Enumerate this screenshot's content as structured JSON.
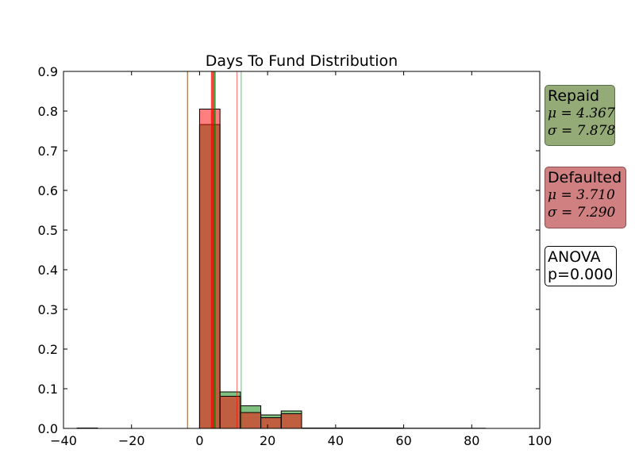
{
  "chart_data": {
    "type": "bar",
    "title": "Days To Fund Distribution",
    "xlabel": "",
    "ylabel": "",
    "xlim": [
      -40,
      100
    ],
    "ylim": [
      0,
      0.9
    ],
    "x_ticks": [
      "−40",
      "−20",
      "0",
      "20",
      "40",
      "60",
      "80",
      "100"
    ],
    "x_tick_values": [
      -40,
      -20,
      0,
      20,
      40,
      60,
      80,
      100
    ],
    "y_ticks": [
      "0.0",
      "0.1",
      "0.2",
      "0.3",
      "0.4",
      "0.5",
      "0.6",
      "0.7",
      "0.8",
      "0.9"
    ],
    "y_tick_values": [
      0,
      0.1,
      0.2,
      0.3,
      0.4,
      0.5,
      0.6,
      0.7,
      0.8,
      0.9
    ],
    "grid": false,
    "series": [
      {
        "name": "Repaid",
        "color": "#008000",
        "fill": "rgba(0,128,0,0.5)",
        "bins": [
          {
            "x0": -36,
            "x1": -30,
            "y": 0.001
          },
          {
            "x0": 0,
            "x1": 6,
            "y": 0.766
          },
          {
            "x0": 6,
            "x1": 12,
            "y": 0.092
          },
          {
            "x0": 12,
            "x1": 18,
            "y": 0.057
          },
          {
            "x0": 18,
            "x1": 24,
            "y": 0.034
          },
          {
            "x0": 24,
            "x1": 30,
            "y": 0.044
          },
          {
            "x0": 30,
            "x1": 60,
            "y": 0.001
          },
          {
            "x0": 60,
            "x1": 84,
            "y": 0.0005
          }
        ],
        "mean": 4.367,
        "std": 7.878
      },
      {
        "name": "Defaulted",
        "color": "#ff0000",
        "fill": "rgba(255,0,0,0.5)",
        "bins": [
          {
            "x0": 0,
            "x1": 6,
            "y": 0.805
          },
          {
            "x0": 6,
            "x1": 12,
            "y": 0.081
          },
          {
            "x0": 12,
            "x1": 18,
            "y": 0.04
          },
          {
            "x0": 18,
            "x1": 24,
            "y": 0.027
          },
          {
            "x0": 24,
            "x1": 30,
            "y": 0.037
          },
          {
            "x0": 30,
            "x1": 50,
            "y": 0.001
          }
        ],
        "mean": 3.71,
        "std": 7.29
      }
    ]
  },
  "annotations": {
    "repaid": {
      "title": "Repaid",
      "mu": "μ = 4.367",
      "sigma": "σ = 7.878",
      "color": "#94ab78"
    },
    "defaulted": {
      "title": "Defaulted",
      "mu": "μ = 3.710",
      "sigma": "σ = 7.290",
      "color": "#d08080"
    },
    "anova": {
      "line1": "ANOVA",
      "line2": "p=0.000"
    }
  }
}
